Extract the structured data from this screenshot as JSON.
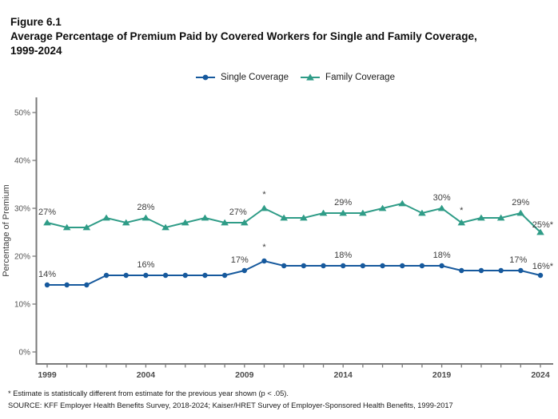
{
  "figure": {
    "lines": [
      "Figure 6.1",
      "Average Percentage of Premium Paid by Covered Workers for Single and Family Coverage,",
      "1999-2024"
    ]
  },
  "legend": {
    "items": [
      {
        "label": "Single Coverage",
        "color": "#16599D",
        "marker": "circle"
      },
      {
        "label": "Family Coverage",
        "color": "#2F9C87",
        "marker": "triangle"
      }
    ]
  },
  "chart_data": {
    "type": "line",
    "title": "Average Percentage of Premium Paid by Covered Workers for Single and Family Coverage, 1999-2024",
    "xlabel": "",
    "ylabel": "Percentage of Premium",
    "ylim": [
      0,
      50
    ],
    "yticks": [
      0,
      10,
      20,
      30,
      40,
      50
    ],
    "ytick_suffix": "%",
    "xtick_labels": [
      1999,
      2004,
      2009,
      2014,
      2019,
      2024
    ],
    "grid": false,
    "legend_position": "top",
    "x": [
      1999,
      2000,
      2001,
      2002,
      2003,
      2004,
      2005,
      2006,
      2007,
      2008,
      2009,
      2010,
      2011,
      2012,
      2013,
      2014,
      2015,
      2016,
      2017,
      2018,
      2019,
      2020,
      2021,
      2022,
      2023,
      2024
    ],
    "series": [
      {
        "name": "Single Coverage",
        "color": "#16599D",
        "marker": "circle",
        "values": [
          14,
          14,
          14,
          16,
          16,
          16,
          16,
          16,
          16,
          16,
          17,
          19,
          18,
          18,
          18,
          18,
          18,
          18,
          18,
          18,
          18,
          17,
          17,
          17,
          17,
          16
        ],
        "labels": [
          {
            "x": 1999,
            "text": "14%"
          },
          {
            "x": 2004,
            "text": "16%"
          },
          {
            "x": 2009,
            "text": "17%",
            "dx": -6
          },
          {
            "x": 2010,
            "text": "*",
            "dy": -14
          },
          {
            "x": 2014,
            "text": "18%"
          },
          {
            "x": 2019,
            "text": "18%"
          },
          {
            "x": 2023,
            "text": "17%",
            "dx": -3
          },
          {
            "x": 2024,
            "text": "16%*",
            "dx": 16,
            "dy": -8,
            "anchor": "end"
          }
        ]
      },
      {
        "name": "Family Coverage",
        "color": "#2F9C87",
        "marker": "triangle",
        "values": [
          27,
          26,
          26,
          28,
          27,
          28,
          26,
          27,
          28,
          27,
          27,
          30,
          28,
          28,
          29,
          29,
          29,
          30,
          31,
          29,
          30,
          27,
          28,
          28,
          29,
          25
        ],
        "labels": [
          {
            "x": 1999,
            "text": "27%"
          },
          {
            "x": 2004,
            "text": "28%"
          },
          {
            "x": 2009,
            "text": "27%",
            "dx": -8
          },
          {
            "x": 2010,
            "text": "*",
            "dy": -14
          },
          {
            "x": 2014,
            "text": "29%"
          },
          {
            "x": 2019,
            "text": "30%"
          },
          {
            "x": 2020,
            "text": "*",
            "dy": -12
          },
          {
            "x": 2023,
            "text": "29%"
          },
          {
            "x": 2024,
            "text": "25%*",
            "dx": 16,
            "dy": -6,
            "anchor": "end"
          }
        ]
      }
    ]
  },
  "footnotes": [
    "* Estimate is statistically different from estimate for the previous year shown (p < .05).",
    "SOURCE: KFF Employer Health Benefits Survey, 2018-2024; Kaiser/HRET Survey of Employer-Sponsored Health Benefits, 1999-2017"
  ]
}
